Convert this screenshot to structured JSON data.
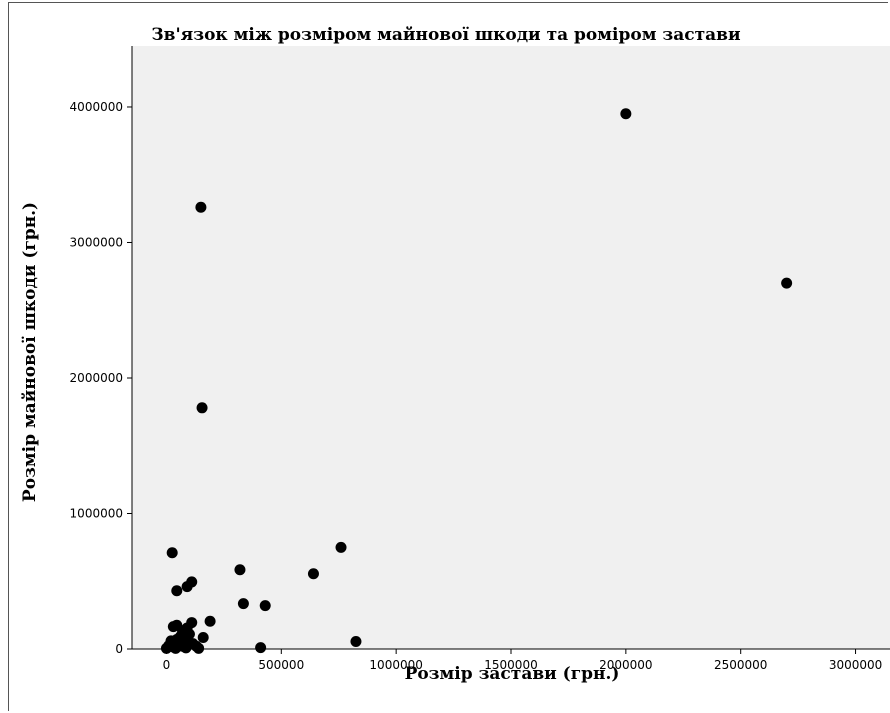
{
  "chart_data": {
    "type": "scatter",
    "title": "Зв'язок між розміром майнової шкоди та роміром застави",
    "xlabel": "Розмір застави (грн.)",
    "ylabel": "Розмір майнової шкоди (грн.)",
    "xlim": [
      -150000,
      3150000
    ],
    "ylim": [
      0,
      4450000
    ],
    "xticks": [
      "0",
      "500000",
      "1000000",
      "1500000",
      "2000000",
      "2500000",
      "3000000"
    ],
    "yticks": [
      "0",
      "1000000",
      "2000000",
      "3000000",
      "4000000"
    ],
    "grid": false,
    "points": [
      {
        "x": 2000000,
        "y": 3950000
      },
      {
        "x": 2700000,
        "y": 2700000
      },
      {
        "x": 150000,
        "y": 3260000
      },
      {
        "x": 155000,
        "y": 1780000
      },
      {
        "x": 760000,
        "y": 750000
      },
      {
        "x": 25000,
        "y": 710000
      },
      {
        "x": 640000,
        "y": 555000
      },
      {
        "x": 320000,
        "y": 585000
      },
      {
        "x": 110000,
        "y": 495000
      },
      {
        "x": 90000,
        "y": 460000
      },
      {
        "x": 45000,
        "y": 430000
      },
      {
        "x": 335000,
        "y": 335000
      },
      {
        "x": 430000,
        "y": 320000
      },
      {
        "x": 190000,
        "y": 205000
      },
      {
        "x": 110000,
        "y": 195000
      },
      {
        "x": 45000,
        "y": 175000
      },
      {
        "x": 30000,
        "y": 165000
      },
      {
        "x": 90000,
        "y": 155000
      },
      {
        "x": 70000,
        "y": 135000
      },
      {
        "x": 100000,
        "y": 110000
      },
      {
        "x": 160000,
        "y": 85000
      },
      {
        "x": 825000,
        "y": 55000
      },
      {
        "x": 20000,
        "y": 60000
      },
      {
        "x": 45000,
        "y": 70000
      },
      {
        "x": 60000,
        "y": 90000
      },
      {
        "x": 80000,
        "y": 60000
      },
      {
        "x": 115000,
        "y": 40000
      },
      {
        "x": 130000,
        "y": 20000
      },
      {
        "x": 10000,
        "y": 25000
      },
      {
        "x": 30000,
        "y": 15000
      },
      {
        "x": 50000,
        "y": 35000
      },
      {
        "x": 70000,
        "y": 20000
      },
      {
        "x": 95000,
        "y": 30000
      },
      {
        "x": 0,
        "y": 5000
      },
      {
        "x": 40000,
        "y": 5000
      },
      {
        "x": 85000,
        "y": 8000
      },
      {
        "x": 140000,
        "y": 5000
      },
      {
        "x": 410000,
        "y": 10000
      }
    ]
  }
}
